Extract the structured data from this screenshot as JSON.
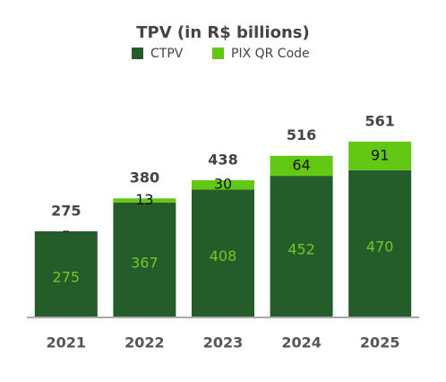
{
  "chart_data": {
    "type": "stacked-bar",
    "title": "TPV (in R$ billions)",
    "categories": [
      "2021",
      "2022",
      "2023",
      "2024",
      "2025"
    ],
    "series": [
      {
        "name": "CTPV",
        "color": "#245c2a",
        "label_color": "#72c925",
        "values": [
          275,
          367,
          408,
          452,
          470
        ]
      },
      {
        "name": "PIX QR Code",
        "color": "#63c814",
        "label_color": "#111111",
        "values": [
          0,
          13,
          30,
          64,
          91
        ],
        "value_labels": [
          "–",
          "13",
          "30",
          "64",
          "91"
        ]
      }
    ],
    "totals": [
      275,
      380,
      438,
      516,
      561
    ]
  }
}
